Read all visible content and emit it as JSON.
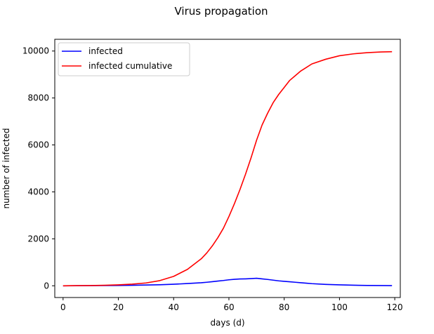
{
  "chart_data": {
    "type": "line",
    "title": "Virus propagation",
    "xlabel": "days (d)",
    "ylabel": "number of infected",
    "xlim": [
      -3,
      122
    ],
    "ylim": [
      -500,
      10500
    ],
    "xticks": [
      0,
      20,
      40,
      60,
      80,
      100,
      120
    ],
    "yticks": [
      0,
      2000,
      4000,
      6000,
      8000,
      10000
    ],
    "xtick_labels": [
      "0",
      "20",
      "40",
      "60",
      "80",
      "100",
      "120"
    ],
    "ytick_labels": [
      "0",
      "2000",
      "4000",
      "6000",
      "8000",
      "10000"
    ],
    "grid": false,
    "legend_position": "upper-left",
    "x": [
      0,
      5,
      10,
      15,
      20,
      25,
      30,
      35,
      40,
      45,
      50,
      52,
      54,
      56,
      58,
      60,
      62,
      64,
      66,
      68,
      70,
      72,
      74,
      76,
      78,
      80,
      82,
      84,
      86,
      88,
      90,
      95,
      100,
      105,
      110,
      115,
      119
    ],
    "series": [
      {
        "name": "infected",
        "color": "#0000ff",
        "values": [
          0,
          2,
          5,
          10,
          15,
          22,
          32,
          45,
          65,
          95,
          130,
          150,
          175,
          200,
          225,
          255,
          275,
          290,
          295,
          305,
          320,
          295,
          270,
          240,
          210,
          190,
          170,
          150,
          130,
          110,
          90,
          60,
          40,
          25,
          15,
          10,
          5
        ]
      },
      {
        "name": "infected cumulative",
        "color": "#ff0000",
        "values": [
          0,
          5,
          10,
          20,
          40,
          70,
          120,
          220,
          400,
          700,
          1150,
          1400,
          1700,
          2050,
          2450,
          2950,
          3500,
          4100,
          4750,
          5450,
          6200,
          6850,
          7350,
          7800,
          8150,
          8450,
          8750,
          8950,
          9150,
          9300,
          9450,
          9650,
          9800,
          9880,
          9930,
          9960,
          9970
        ]
      }
    ]
  }
}
